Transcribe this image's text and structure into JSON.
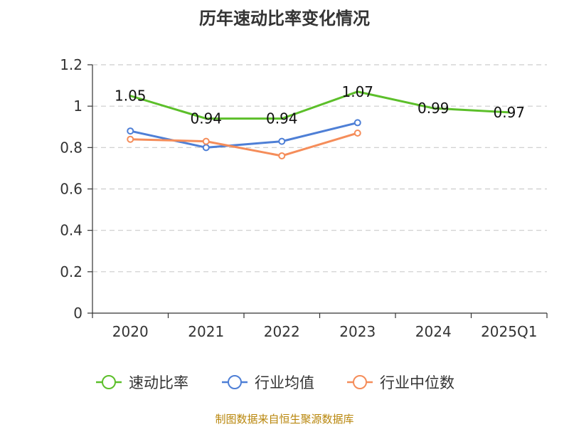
{
  "chart_data": {
    "type": "line",
    "title": "历年速动比率变化情况",
    "categories": [
      "2020",
      "2021",
      "2022",
      "2023",
      "2024",
      "2025Q1"
    ],
    "ylim": [
      0,
      1.2
    ],
    "yticks": [
      "0",
      "0.2",
      "0.4",
      "0.6",
      "0.8",
      "1",
      "1.2"
    ],
    "grid": true,
    "legend_position": "bottom",
    "series": [
      {
        "name": "速动比率",
        "color": "#5cbf2a",
        "values": [
          1.05,
          0.94,
          0.94,
          1.07,
          0.99,
          0.97
        ],
        "show_labels": true
      },
      {
        "name": "行业均值",
        "color": "#4e7fd6",
        "values": [
          0.88,
          0.8,
          0.83,
          0.92,
          null,
          null
        ],
        "show_labels": false
      },
      {
        "name": "行业中位数",
        "color": "#f58d5a",
        "values": [
          0.84,
          0.83,
          0.76,
          0.87,
          null,
          null
        ],
        "show_labels": false
      }
    ],
    "labels": {
      "速动比率": [
        "1.05",
        "0.94",
        "0.94",
        "1.07",
        "0.99",
        "0.97"
      ]
    }
  },
  "footer": {
    "source": "制图数据来自恒生聚源数据库"
  }
}
